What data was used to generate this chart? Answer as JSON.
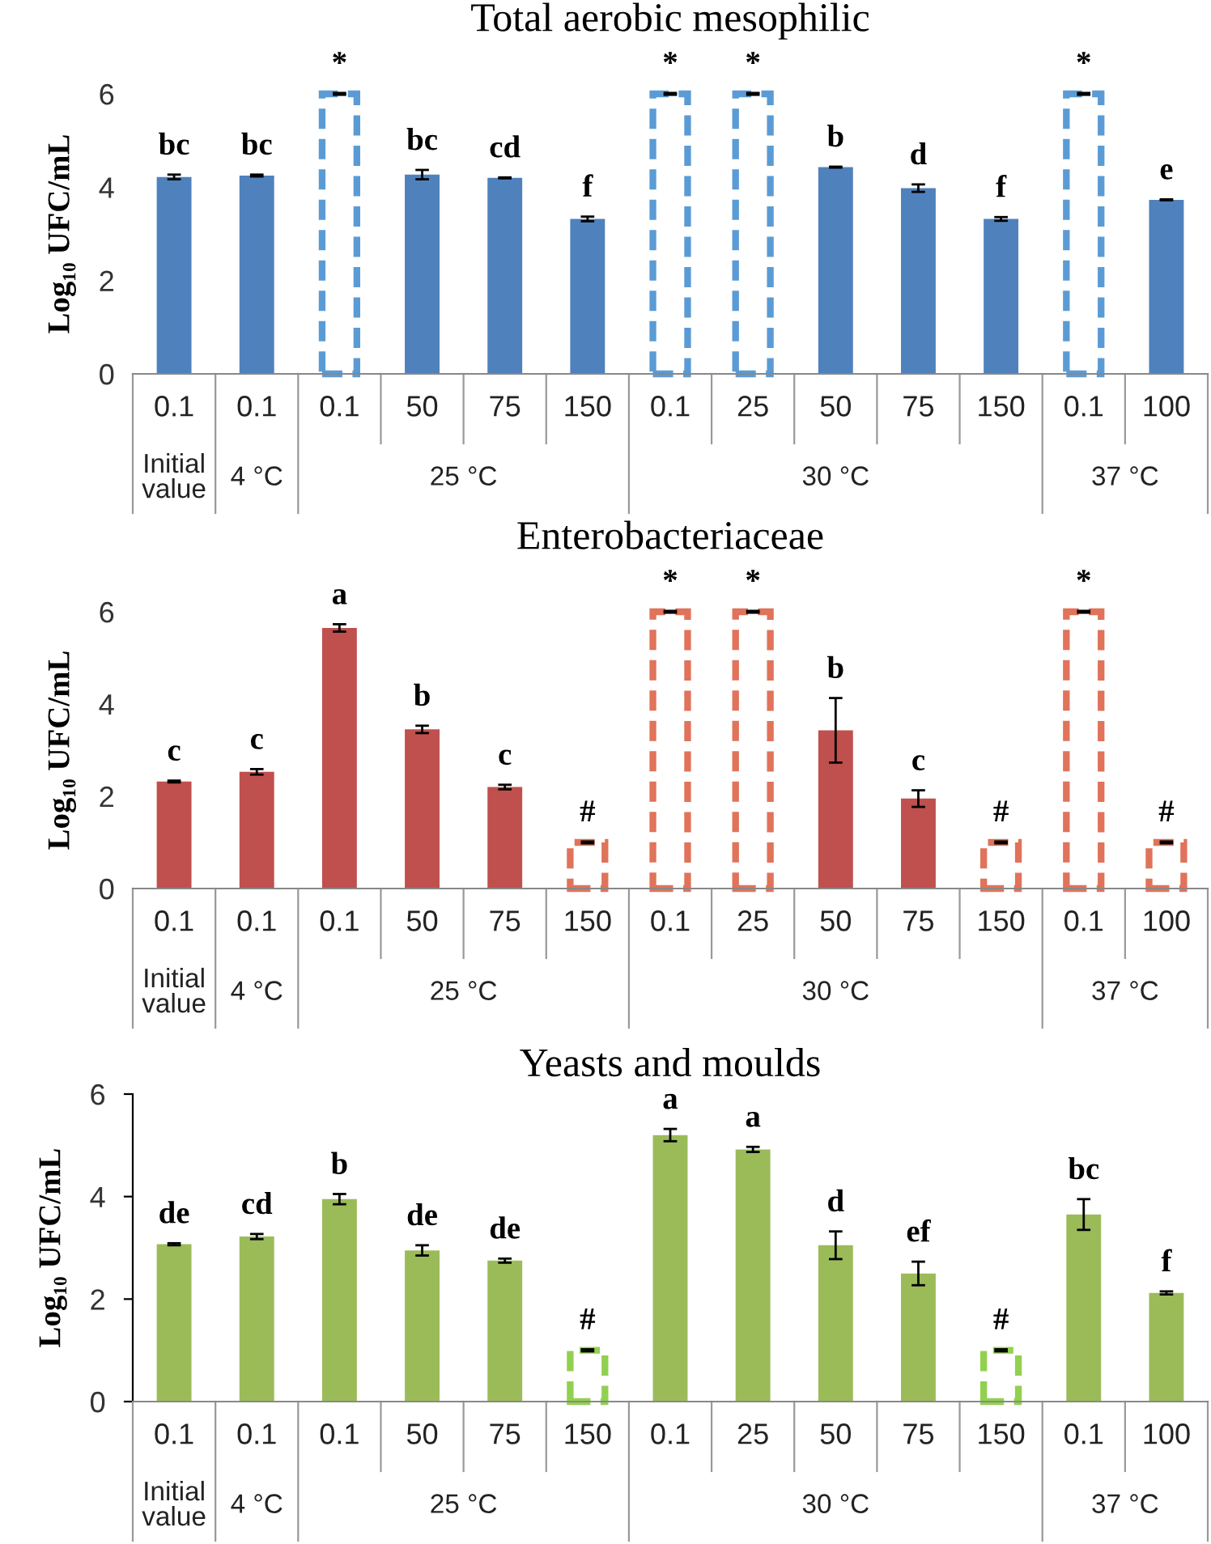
{
  "chart_data": [
    {
      "type": "bar",
      "title": "Total aerobic mesophilic",
      "ylabel": "Log₁₀ UFC/mL",
      "categories": [
        "0.1",
        "0.1",
        "0.1",
        "50",
        "75",
        "150",
        "0.1",
        "25",
        "50",
        "75",
        "150",
        "0.1",
        "100"
      ],
      "series": [
        {
          "color": "#4f81bd",
          "values": [
            4.22,
            4.25,
            null,
            4.27,
            4.2,
            3.32,
            null,
            null,
            4.43,
            3.98,
            3.32,
            null,
            3.73
          ],
          "errors": [
            0.05,
            0.02,
            null,
            0.1,
            0.01,
            0.05,
            null,
            null,
            0.01,
            0.08,
            0.04,
            null,
            0.01
          ],
          "value_labels": [
            "bc",
            "bc",
            null,
            "bc",
            "cd",
            "f",
            null,
            null,
            "b",
            "d",
            "f",
            null,
            "e"
          ]
        },
        {
          "color": "#5b9bd5",
          "line_style": "dashed",
          "values": [
            null,
            null,
            6,
            null,
            null,
            null,
            6,
            6,
            null,
            null,
            null,
            6,
            null
          ],
          "errors": [
            null,
            null,
            0.02,
            null,
            null,
            null,
            0.02,
            0.02,
            null,
            null,
            null,
            0.02,
            null
          ],
          "value_labels": [
            null,
            null,
            "*",
            null,
            null,
            null,
            "*",
            "*",
            null,
            null,
            null,
            "*",
            null
          ]
        }
      ],
      "ylim": [
        0,
        6
      ],
      "yticks": [
        0,
        2,
        4,
        6
      ],
      "grid": false,
      "legend": false,
      "annotations": [
        "Initial value",
        "4 °C",
        "25 °C",
        "30 °C",
        "37 °C"
      ]
    },
    {
      "type": "bar",
      "title": "Enterobacteriaceae",
      "ylabel": "Log₁₀ UFC/mL",
      "categories": [
        "0.1",
        "0.1",
        "0.1",
        "50",
        "75",
        "150",
        "0.1",
        "25",
        "50",
        "75",
        "150",
        "0.1",
        "100"
      ],
      "series": [
        {
          "color": "#c0504d",
          "values": [
            2.32,
            2.53,
            5.65,
            3.45,
            2.2,
            null,
            null,
            null,
            3.43,
            1.95,
            null,
            null,
            null
          ],
          "errors": [
            0.02,
            0.06,
            0.08,
            0.08,
            0.05,
            null,
            null,
            null,
            0.7,
            0.18,
            null,
            null,
            null
          ],
          "value_labels": [
            "c",
            "c",
            "a",
            "b",
            "c",
            null,
            null,
            null,
            "b",
            "c",
            null,
            null,
            null
          ]
        },
        {
          "color": "#e0735a",
          "line_style": "dashed",
          "values": [
            null,
            null,
            null,
            null,
            null,
            1,
            6,
            6,
            null,
            null,
            1,
            6,
            1
          ],
          "errors": [
            null,
            null,
            null,
            null,
            null,
            0.02,
            0.02,
            0.02,
            null,
            null,
            0.02,
            0.02,
            0.02
          ],
          "value_labels": [
            null,
            null,
            null,
            null,
            null,
            "#",
            "*",
            "*",
            null,
            null,
            "#",
            "*",
            "#"
          ]
        }
      ],
      "ylim": [
        0,
        6
      ],
      "yticks": [
        0,
        2,
        4,
        6
      ],
      "grid": false,
      "legend": false,
      "annotations": [
        "Initial value",
        "4 °C",
        "25 °C",
        "30 °C",
        "37 °C"
      ]
    },
    {
      "type": "bar",
      "title": "Yeasts and moulds",
      "ylabel": "Log₁₀ UFC/mL",
      "categories": [
        "0.1",
        "0.1",
        "0.1",
        "50",
        "75",
        "150",
        "0.1",
        "25",
        "50",
        "75",
        "150",
        "0.1",
        "100"
      ],
      "series": [
        {
          "color": "#9bbb59",
          "values": [
            3.07,
            3.22,
            3.95,
            2.95,
            2.75,
            null,
            5.2,
            4.92,
            3.05,
            2.5,
            null,
            3.65,
            2.12
          ],
          "errors": [
            0.02,
            0.05,
            0.1,
            0.1,
            0.04,
            null,
            0.12,
            0.05,
            0.27,
            0.23,
            null,
            0.3,
            0.03
          ],
          "value_labels": [
            "de",
            "cd",
            "b",
            "de",
            "de",
            null,
            "a",
            "a",
            "d",
            "ef",
            null,
            "bc",
            "f"
          ]
        },
        {
          "color": "#92d050",
          "line_style": "dashed",
          "values": [
            null,
            null,
            null,
            null,
            null,
            1,
            null,
            null,
            null,
            null,
            1,
            null,
            null
          ],
          "errors": [
            null,
            null,
            null,
            null,
            null,
            0.02,
            null,
            null,
            null,
            null,
            0.02,
            null,
            null
          ],
          "value_labels": [
            null,
            null,
            null,
            null,
            null,
            "#",
            null,
            null,
            null,
            null,
            "#",
            null,
            null
          ]
        }
      ],
      "ylim": [
        0,
        6
      ],
      "yticks": [
        0,
        2,
        4,
        6
      ],
      "grid": false,
      "legend": false,
      "annotations": [
        "Initial value",
        "4 °C",
        "25 °C",
        "30 °C",
        "37 °C"
      ]
    }
  ]
}
